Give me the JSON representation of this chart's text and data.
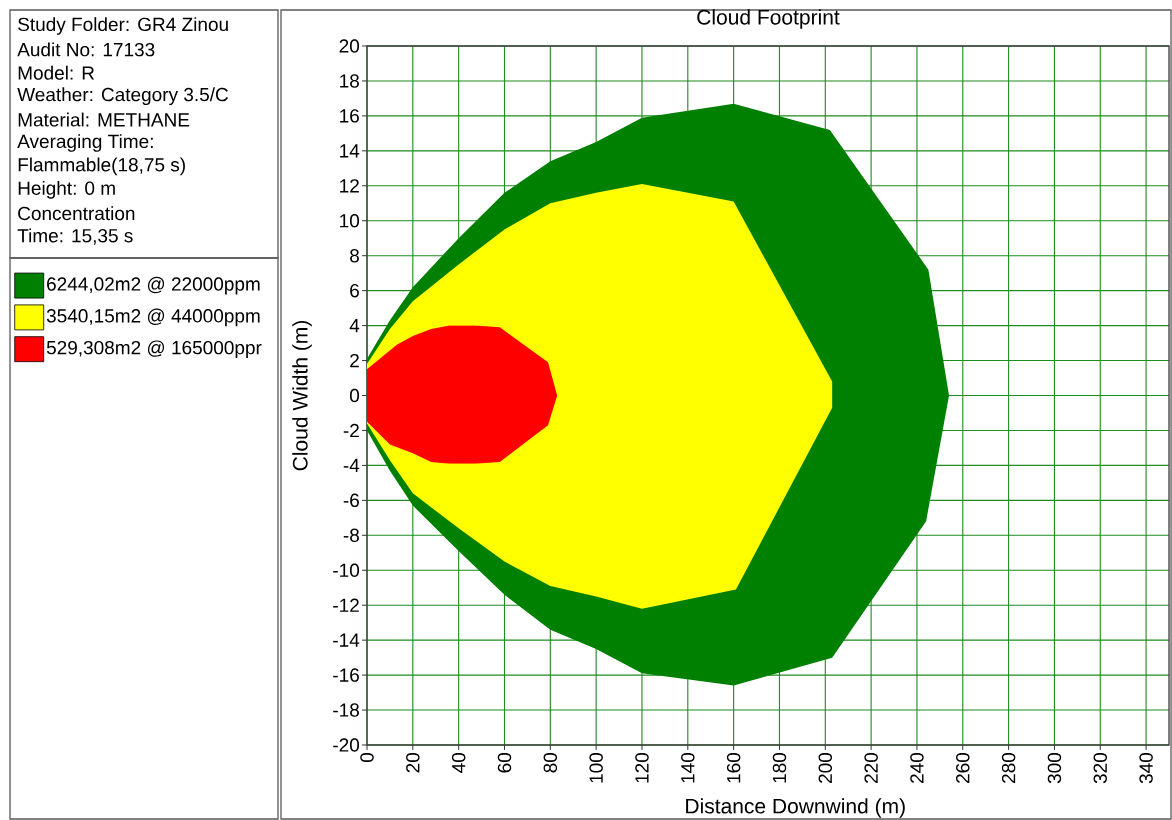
{
  "chart_data": {
    "type": "area",
    "title": "Cloud Footprint",
    "xlabel": "Distance Downwind (m)",
    "ylabel": "Cloud Width (m)",
    "series": [
      {
        "name": "6244,02m2 @ 22000ppm",
        "color": "#008000",
        "x": [
          0,
          10,
          20,
          40,
          60,
          80,
          100,
          120,
          160,
          202,
          245,
          254,
          244,
          203,
          160,
          120,
          100,
          80,
          60,
          40,
          20,
          10,
          0
        ],
        "values": [
          2.1,
          4.3,
          6.2,
          9.0,
          11.6,
          13.4,
          14.5,
          15.9,
          16.7,
          15.2,
          7.2,
          0,
          -7.2,
          -15.0,
          -16.6,
          -15.9,
          -14.5,
          -13.4,
          -11.4,
          -8.9,
          -6.3,
          -4.3,
          -2.0
        ]
      },
      {
        "name": "3540,15m2 @ 44000ppm",
        "color": "#ffff00",
        "x": [
          0,
          10,
          20,
          40,
          60,
          80,
          100,
          120,
          160,
          203,
          203,
          161,
          120,
          100,
          80,
          60,
          40,
          20,
          10,
          0
        ],
        "values": [
          1.8,
          3.8,
          5.4,
          7.5,
          9.5,
          11.0,
          11.6,
          12.1,
          11.1,
          0.8,
          -0.7,
          -11.1,
          -12.2,
          -11.5,
          -10.9,
          -9.5,
          -7.6,
          -5.6,
          -3.7,
          -1.6
        ]
      },
      {
        "name": "529,308m2 @ 165000ppr",
        "color": "#ff0000",
        "x": [
          0,
          13,
          20,
          28,
          36,
          47,
          58,
          79,
          83,
          79,
          58,
          47,
          36,
          28,
          20,
          10,
          0
        ],
        "values": [
          1.5,
          2.9,
          3.4,
          3.8,
          4.0,
          4.0,
          3.9,
          1.9,
          0,
          -1.7,
          -3.8,
          -3.9,
          -3.9,
          -3.8,
          -3.3,
          -2.8,
          -1.5
        ]
      }
    ],
    "xlim": [
      0,
      350
    ],
    "xticks": [
      0,
      20,
      40,
      60,
      80,
      100,
      120,
      140,
      160,
      180,
      200,
      220,
      240,
      260,
      280,
      300,
      320,
      340
    ],
    "ylim": [
      -20,
      20
    ],
    "yticks": [
      -20,
      -18,
      -16,
      -14,
      -12,
      -10,
      -8,
      -6,
      -4,
      -2,
      0,
      2,
      4,
      6,
      8,
      10,
      12,
      14,
      16,
      18,
      20
    ],
    "grid": true,
    "legend": "left",
    "annotations": [
      "Study Folder: GR4 Zinou",
      "Audit No: 17133",
      "Model: R",
      "Weather: Category 3.5/C",
      "Material: METHANE",
      "Averaging Time:",
      "Flammable(18,75 s)",
      "Height: 0 m",
      "Concentration",
      "Time: 15,35 s"
    ]
  }
}
